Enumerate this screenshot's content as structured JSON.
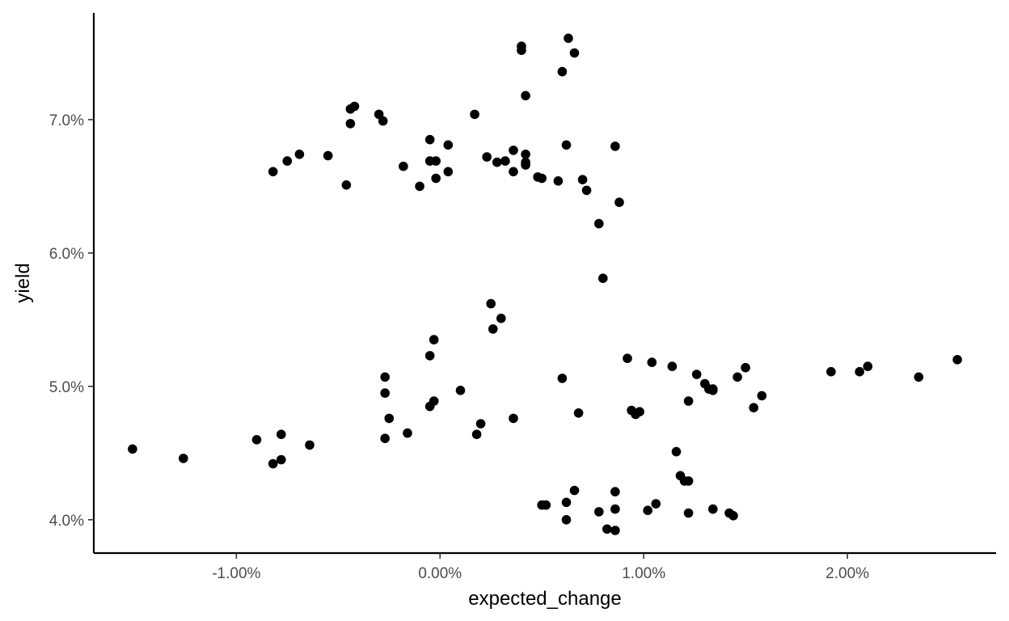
{
  "chart_data": {
    "type": "scatter",
    "xlabel": "expected_change",
    "ylabel": "yield",
    "xlim": [
      -1.7,
      2.73
    ],
    "ylim": [
      3.75,
      7.8
    ],
    "grid": false,
    "legend": "none",
    "point_color": "#000000",
    "x_ticks": [
      {
        "value": -1.0,
        "label": "-1.00%"
      },
      {
        "value": 0.0,
        "label": "0.00%"
      },
      {
        "value": 1.0,
        "label": "1.00%"
      },
      {
        "value": 2.0,
        "label": "2.00%"
      }
    ],
    "y_ticks": [
      {
        "value": 4.0,
        "label": "4.0%"
      },
      {
        "value": 5.0,
        "label": "5.0%"
      },
      {
        "value": 6.0,
        "label": "6.0%"
      },
      {
        "value": 7.0,
        "label": "7.0%"
      }
    ],
    "points": [
      [
        -1.51,
        4.53
      ],
      [
        -1.26,
        4.46
      ],
      [
        -0.9,
        4.6
      ],
      [
        -0.82,
        4.42
      ],
      [
        -0.78,
        4.45
      ],
      [
        -0.78,
        4.64
      ],
      [
        -0.64,
        4.56
      ],
      [
        -0.82,
        6.61
      ],
      [
        -0.75,
        6.69
      ],
      [
        -0.69,
        6.74
      ],
      [
        -0.55,
        6.73
      ],
      [
        -0.46,
        6.51
      ],
      [
        -0.44,
        7.08
      ],
      [
        -0.42,
        7.1
      ],
      [
        -0.44,
        6.97
      ],
      [
        -0.3,
        7.04
      ],
      [
        -0.28,
        6.99
      ],
      [
        -0.27,
        5.07
      ],
      [
        -0.27,
        4.95
      ],
      [
        -0.25,
        4.76
      ],
      [
        -0.27,
        4.61
      ],
      [
        -0.18,
        6.65
      ],
      [
        -0.16,
        4.65
      ],
      [
        -0.1,
        6.5
      ],
      [
        -0.05,
        6.85
      ],
      [
        -0.05,
        6.69
      ],
      [
        -0.02,
        6.69
      ],
      [
        -0.02,
        6.56
      ],
      [
        0.04,
        6.81
      ],
      [
        0.04,
        6.61
      ],
      [
        -0.03,
        5.35
      ],
      [
        -0.05,
        5.23
      ],
      [
        -0.03,
        4.89
      ],
      [
        -0.05,
        4.85
      ],
      [
        0.1,
        4.97
      ],
      [
        0.17,
        7.04
      ],
      [
        0.23,
        6.72
      ],
      [
        0.28,
        6.68
      ],
      [
        0.32,
        6.69
      ],
      [
        0.36,
        6.77
      ],
      [
        0.36,
        6.61
      ],
      [
        0.42,
        6.74
      ],
      [
        0.42,
        6.68
      ],
      [
        0.42,
        6.66
      ],
      [
        0.42,
        7.18
      ],
      [
        0.4,
        7.55
      ],
      [
        0.4,
        7.52
      ],
      [
        0.48,
        6.57
      ],
      [
        0.5,
        6.56
      ],
      [
        0.25,
        5.62
      ],
      [
        0.3,
        5.51
      ],
      [
        0.26,
        5.43
      ],
      [
        0.18,
        4.64
      ],
      [
        0.2,
        4.72
      ],
      [
        0.36,
        4.76
      ],
      [
        0.58,
        6.54
      ],
      [
        0.6,
        7.36
      ],
      [
        0.63,
        7.61
      ],
      [
        0.66,
        7.5
      ],
      [
        0.62,
        6.81
      ],
      [
        0.7,
        6.55
      ],
      [
        0.72,
        6.47
      ],
      [
        0.6,
        5.06
      ],
      [
        0.68,
        4.8
      ],
      [
        0.78,
        6.22
      ],
      [
        0.8,
        5.81
      ],
      [
        0.86,
        6.8
      ],
      [
        0.88,
        6.38
      ],
      [
        0.92,
        5.21
      ],
      [
        0.94,
        4.82
      ],
      [
        0.96,
        4.79
      ],
      [
        0.98,
        4.81
      ],
      [
        1.04,
        5.18
      ],
      [
        1.14,
        5.15
      ],
      [
        1.16,
        4.51
      ],
      [
        1.18,
        4.33
      ],
      [
        1.2,
        4.29
      ],
      [
        1.22,
        4.29
      ],
      [
        1.22,
        4.89
      ],
      [
        1.26,
        5.09
      ],
      [
        1.3,
        5.02
      ],
      [
        1.32,
        4.98
      ],
      [
        1.34,
        4.98
      ],
      [
        1.34,
        4.97
      ],
      [
        1.46,
        5.07
      ],
      [
        1.5,
        5.14
      ],
      [
        1.54,
        4.84
      ],
      [
        1.58,
        4.93
      ],
      [
        1.92,
        5.11
      ],
      [
        2.06,
        5.11
      ],
      [
        2.1,
        5.15
      ],
      [
        2.35,
        5.07
      ],
      [
        2.54,
        5.2
      ],
      [
        0.5,
        4.11
      ],
      [
        0.52,
        4.11
      ],
      [
        0.62,
        4.13
      ],
      [
        0.66,
        4.22
      ],
      [
        0.62,
        4.0
      ],
      [
        0.78,
        4.06
      ],
      [
        0.82,
        3.93
      ],
      [
        0.86,
        3.92
      ],
      [
        0.86,
        4.08
      ],
      [
        0.86,
        4.21
      ],
      [
        1.02,
        4.07
      ],
      [
        1.06,
        4.12
      ],
      [
        1.22,
        4.05
      ],
      [
        1.34,
        4.08
      ],
      [
        1.42,
        4.05
      ],
      [
        1.44,
        4.03
      ]
    ]
  }
}
